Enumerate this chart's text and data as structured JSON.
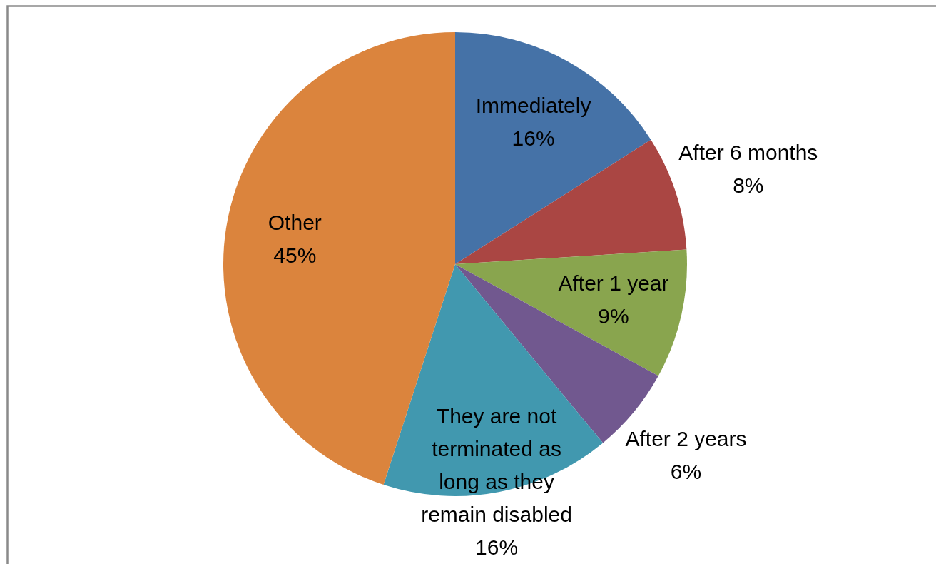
{
  "chart_data": {
    "type": "pie",
    "categories": [
      "Immediately",
      "After 6 months",
      "After 1 year",
      "After 2 years",
      "They are not terminated as long as they remain disabled",
      "Other"
    ],
    "values": [
      16,
      8,
      9,
      6,
      16,
      45
    ],
    "colors": [
      "#4572a7",
      "#aa4643",
      "#89a54e",
      "#71588f",
      "#4198af",
      "#db843d"
    ],
    "value_labels": [
      "16%",
      "8%",
      "9%",
      "6%",
      "16%",
      "45%"
    ]
  }
}
